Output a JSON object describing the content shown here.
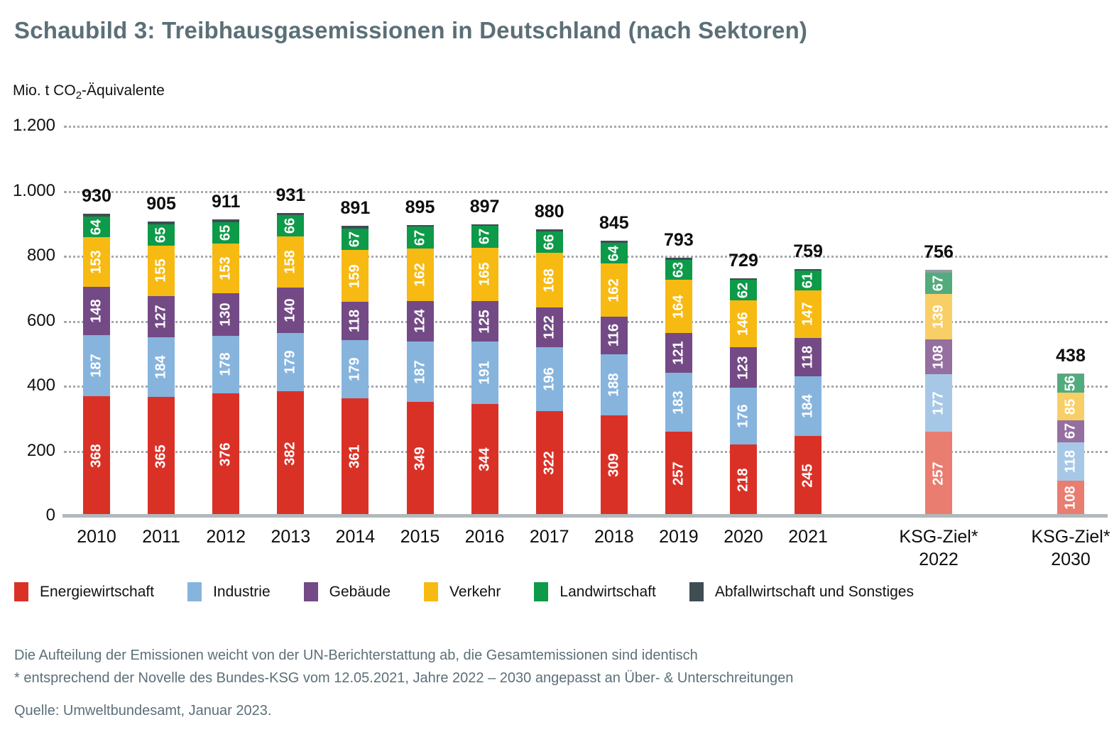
{
  "header": {
    "title": "Schaubild 3: Treibhausgasemissionen in Deutschland (nach Sektoren)"
  },
  "unit_label": {
    "prefix": "Mio. t CO",
    "sub": "2",
    "suffix": "-Äquivalente"
  },
  "chart_data": {
    "type": "bar",
    "stacked": true,
    "title": "Schaubild 3: Treibhausgasemissionen in Deutschland (nach Sektoren)",
    "ylabel": "Mio. t CO2-Äquivalente",
    "ylim": [
      0,
      1200
    ],
    "grid": "dotted-horizontal",
    "legend_position": "bottom",
    "y_ticks": [
      {
        "label": "1.200",
        "value": 1200
      },
      {
        "label": "1.000",
        "value": 1000
      },
      {
        "label": "800",
        "value": 800
      },
      {
        "label": "600",
        "value": 600
      },
      {
        "label": "400",
        "value": 400
      },
      {
        "label": "200",
        "value": 200
      },
      {
        "label": "0",
        "value": 0
      }
    ],
    "series_names": [
      "Energiewirtschaft",
      "Industrie",
      "Gebäude",
      "Verkehr",
      "Landwirtschaft",
      "Abfallwirtschaft und Sonstiges"
    ],
    "note": "Abfallwirtschaft-und-Sonstiges segment is unlabeled in the bars; its value equals total minus the sum of labeled segments",
    "colors": {
      "normal": [
        "#da3127",
        "#86b4dd",
        "#734a85",
        "#f7ba13",
        "#0d9a49",
        "#3f4d54"
      ],
      "muted": [
        "#e97d6f",
        "#a6c8e6",
        "#956fa0",
        "#f8cf66",
        "#52ab7d",
        "#939da2"
      ]
    },
    "bars": [
      {
        "label": "2010",
        "total": 930,
        "values": [
          368,
          187,
          148,
          153,
          64
        ],
        "muted": false
      },
      {
        "label": "2011",
        "total": 905,
        "values": [
          365,
          184,
          127,
          155,
          65
        ],
        "muted": false
      },
      {
        "label": "2012",
        "total": 911,
        "values": [
          376,
          178,
          130,
          153,
          65
        ],
        "muted": false
      },
      {
        "label": "2013",
        "total": 931,
        "values": [
          382,
          179,
          140,
          158,
          66
        ],
        "muted": false
      },
      {
        "label": "2014",
        "total": 891,
        "values": [
          361,
          179,
          118,
          159,
          67
        ],
        "muted": false
      },
      {
        "label": "2015",
        "total": 895,
        "values": [
          349,
          187,
          124,
          162,
          67
        ],
        "muted": false
      },
      {
        "label": "2016",
        "total": 897,
        "values": [
          344,
          191,
          125,
          165,
          67
        ],
        "muted": false
      },
      {
        "label": "2017",
        "total": 880,
        "values": [
          322,
          196,
          122,
          168,
          66
        ],
        "muted": false
      },
      {
        "label": "2018",
        "total": 845,
        "values": [
          309,
          188,
          116,
          162,
          64
        ],
        "muted": false
      },
      {
        "label": "2019",
        "total": 793,
        "values": [
          257,
          183,
          121,
          164,
          63
        ],
        "muted": false
      },
      {
        "label": "2020",
        "total": 729,
        "values": [
          218,
          176,
          123,
          146,
          62
        ],
        "muted": false
      },
      {
        "label": "2021",
        "total": 759,
        "values": [
          245,
          184,
          118,
          147,
          61
        ],
        "muted": false
      },
      {
        "label": "KSG-Ziel*",
        "sublabel": "2022",
        "total": 756,
        "values": [
          257,
          177,
          108,
          139,
          67
        ],
        "muted": true
      },
      {
        "label": "KSG-Ziel*",
        "sublabel": "2030",
        "total": 438,
        "values": [
          108,
          118,
          67,
          85,
          56
        ],
        "muted": true
      }
    ]
  },
  "footnotes": {
    "line1": "Die Aufteilung der Emissionen weicht von der UN-Berichterstattung ab, die Gesamtemissionen sind identisch",
    "line2": "* entsprechend der Novelle des Bundes-KSG vom 12.05.2021, Jahre 2022 – 2030 angepasst an Über- & Unterschreitungen",
    "source": "Quelle: Umweltbundesamt, Januar 2023."
  }
}
